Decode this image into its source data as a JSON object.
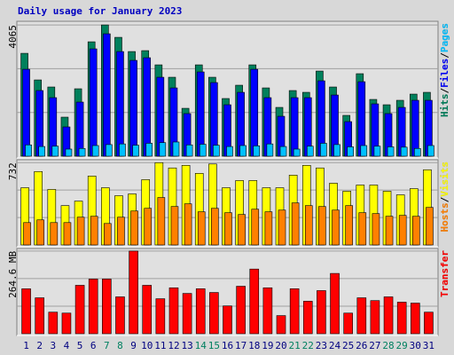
{
  "chart_data": [
    {
      "type": "bar",
      "title": "Daily usage for January 2023",
      "ylim": [
        0,
        4150
      ],
      "yticks": [
        4065
      ],
      "grid": true,
      "legend_separator": "/",
      "series": [
        {
          "name": "Hits",
          "color": "#00805c",
          "values": [
            3186,
            2362,
            2143,
            1209,
            2088,
            3543,
            4065,
            3681,
            3241,
            3269,
            2829,
            2445,
            1483,
            2829,
            2445,
            1786,
            2198,
            2829,
            2115,
            1511,
            2033,
            1978,
            2637,
            2143,
            1264,
            2555,
            1758,
            1593,
            1731,
            1923,
            1978
          ]
        },
        {
          "name": "Files",
          "color": "#0000ff",
          "values": [
            2692,
            2033,
            1813,
            907,
            1676,
            3324,
            3791,
            3241,
            2967,
            3049,
            2445,
            2115,
            1319,
            2610,
            2280,
            1593,
            1978,
            2692,
            1813,
            1236,
            1813,
            1813,
            2335,
            1895,
            1071,
            2307,
            1621,
            1319,
            1511,
            1731,
            1731
          ]
        },
        {
          "name": "Pages",
          "color": "#00c0ff",
          "values": [
            350,
            300,
            310,
            220,
            240,
            330,
            360,
            380,
            340,
            400,
            420,
            440,
            350,
            370,
            340,
            300,
            330,
            320,
            380,
            300,
            220,
            310,
            400,
            360,
            290,
            330,
            310,
            290,
            280,
            240,
            330
          ]
        }
      ]
    },
    {
      "type": "bar",
      "ylim": [
        0,
        750
      ],
      "yticks": [
        732
      ],
      "grid": true,
      "legend_separator": "/",
      "series": [
        {
          "name": "Hosts",
          "color": "#ff8000",
          "values": [
            199,
            223,
            199,
            199,
            247,
            255,
            191,
            247,
            302,
            326,
            422,
            342,
            366,
            295,
            326,
            287,
            271,
            318,
            295,
            310,
            374,
            350,
            342,
            310,
            350,
            287,
            279,
            255,
            263,
            255,
            334
          ]
        },
        {
          "name": "Visits",
          "color": "#ffff00",
          "values": [
            509,
            653,
            494,
            350,
            390,
            613,
            509,
            438,
            454,
            581,
            732,
            685,
            708,
            637,
            720,
            509,
            573,
            573,
            509,
            509,
            621,
            708,
            685,
            549,
            478,
            533,
            533,
            478,
            446,
            501,
            669
          ]
        }
      ]
    },
    {
      "type": "bar",
      "ylim": [
        0,
        270
      ],
      "yticks": [
        {
          "value": 264.6,
          "label": "264.6 MB"
        }
      ],
      "grid": true,
      "categories": [
        "1",
        "2",
        "3",
        "4",
        "5",
        "6",
        "7",
        "8",
        "9",
        "10",
        "11",
        "12",
        "13",
        "14",
        "15",
        "16",
        "17",
        "18",
        "19",
        "20",
        "21",
        "22",
        "23",
        "24",
        "25",
        "26",
        "27",
        "28",
        "29",
        "30",
        "31"
      ],
      "weekend_categories": [
        "7",
        "8",
        "14",
        "15",
        "21",
        "22",
        "28",
        "29"
      ],
      "series": [
        {
          "name": "Transfer",
          "color": "#ff0000",
          "values": [
            143.8,
            115,
            69,
            66,
            155,
            175,
            175,
            118,
            264.6,
            155,
            112,
            147,
            129,
            144,
            132,
            89,
            152,
            207,
            147,
            58,
            144,
            104,
            138,
            193,
            66,
            115,
            106,
            118,
            101,
            98,
            69
          ]
        }
      ]
    }
  ]
}
